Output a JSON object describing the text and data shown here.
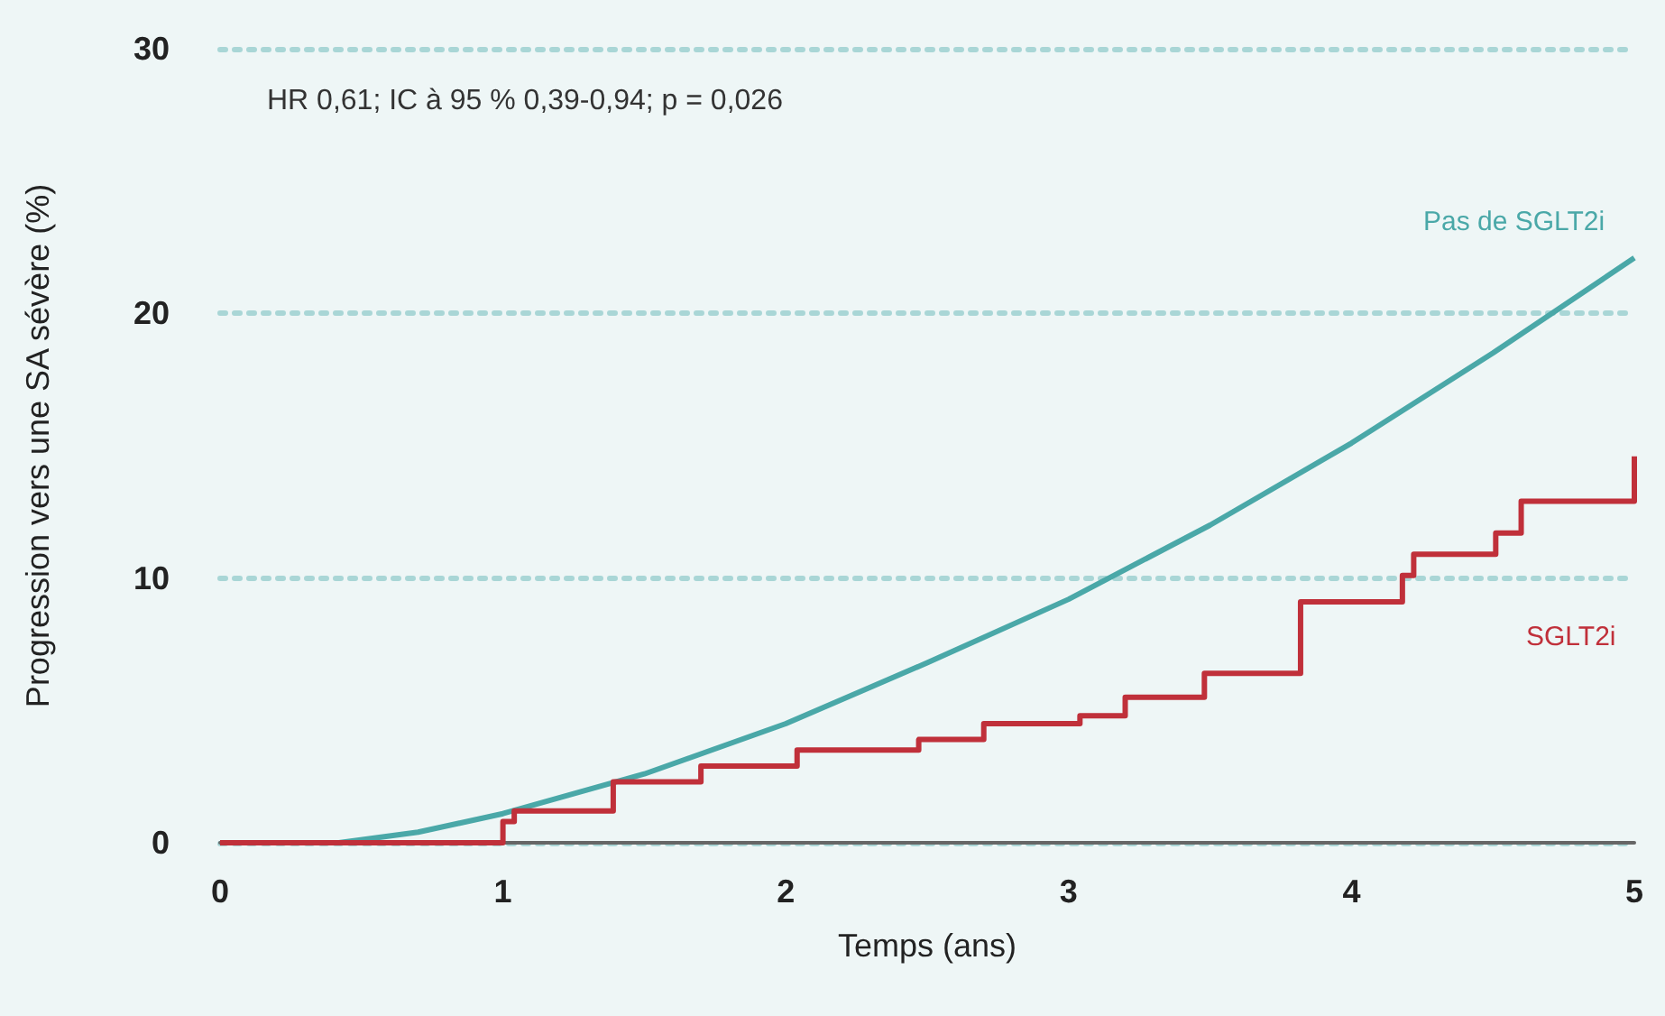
{
  "chart_data": {
    "type": "line",
    "xlabel": "Temps (ans)",
    "ylabel": "Progression vers une SA sévère (%)",
    "annotations": [
      "HR 0,61; IC à 95 % 0,39-0,94; p = 0,026"
    ],
    "xlim": [
      0,
      5
    ],
    "xticks": [
      0,
      1,
      2,
      3,
      4,
      5
    ],
    "ylim": [
      0,
      30
    ],
    "yticks": [
      0,
      10,
      20,
      30
    ],
    "grid": "y",
    "marker": "none",
    "series": [
      {
        "name": "Pas de SGLT2i",
        "color": "#4aa8a8",
        "x": [
          0.42,
          0.7,
          1,
          1.5,
          2,
          2.5,
          3,
          3.5,
          4,
          4.5,
          5
        ],
        "values": [
          0,
          0.4,
          1.1,
          2.6,
          4.5,
          6.8,
          9.2,
          12.0,
          15.1,
          18.5,
          22.1
        ]
      },
      {
        "name": "SGLT2i",
        "color": "#c0303a",
        "type": "step",
        "x": [
          0,
          1.0,
          1.04,
          1.39,
          1.7,
          2.04,
          2.47,
          2.7,
          3.04,
          3.2,
          3.48,
          3.82,
          4.18,
          4.22,
          4.51,
          4.6,
          5.0
        ],
        "values": [
          0,
          0.8,
          1.2,
          2.3,
          2.9,
          3.5,
          3.9,
          4.5,
          4.8,
          5.5,
          6.4,
          9.1,
          10.1,
          10.9,
          11.7,
          12.9,
          14.6
        ]
      }
    ]
  }
}
